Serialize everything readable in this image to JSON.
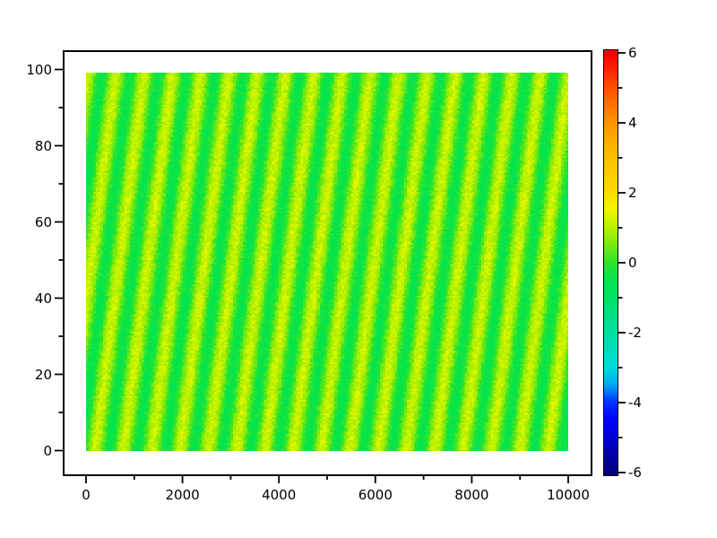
{
  "figure": {
    "background": "#ffffff",
    "frame_color": "#000000",
    "tick_label_color": "#000000"
  },
  "chart_data": {
    "type": "heatmap",
    "title": "",
    "xlabel": "",
    "ylabel": "",
    "x_range": [
      0,
      10000
    ],
    "y_range": [
      0,
      100
    ],
    "grid": false,
    "x_axis": {
      "major_ticks": [
        0,
        2000,
        4000,
        6000,
        8000,
        10000
      ],
      "minor_ticks": [
        1000,
        3000,
        5000,
        7000,
        9000
      ],
      "tick_labels": [
        "0",
        "2000",
        "4000",
        "6000",
        "8000",
        "10000"
      ]
    },
    "y_axis": {
      "major_ticks": [
        0,
        20,
        40,
        60,
        80,
        100
      ],
      "minor_ticks": [
        10,
        30,
        50,
        70,
        90
      ],
      "tick_labels": [
        "0",
        "20",
        "40",
        "60",
        "80",
        "100"
      ]
    },
    "colorbar": {
      "vmin": -6,
      "vmax": 6,
      "position": "right",
      "major_ticks": [
        6,
        4,
        2,
        0,
        -2,
        -4,
        -6
      ],
      "minor_ticks": [
        5,
        3,
        1,
        -1,
        -3,
        -5
      ],
      "tick_labels": [
        "6",
        "4",
        "2",
        "0",
        "-2",
        "-4",
        "-6"
      ],
      "colormap_stops": [
        {
          "v": -6.0,
          "color": "#000080"
        },
        {
          "v": -5.0,
          "color": "#0000d6"
        },
        {
          "v": -4.5,
          "color": "#0000fa"
        },
        {
          "v": -4.0,
          "color": "#0032ff"
        },
        {
          "v": -3.5,
          "color": "#00a8f0"
        },
        {
          "v": -3.0,
          "color": "#00dcdc"
        },
        {
          "v": -2.0,
          "color": "#00dda2"
        },
        {
          "v": -1.0,
          "color": "#00e164"
        },
        {
          "v": -0.5,
          "color": "#00e44e"
        },
        {
          "v": 0.0,
          "color": "#2ce42c"
        },
        {
          "v": 0.5,
          "color": "#76ea10"
        },
        {
          "v": 1.0,
          "color": "#b6f000"
        },
        {
          "v": 1.5,
          "color": "#eef800"
        },
        {
          "v": 2.0,
          "color": "#ffdc00"
        },
        {
          "v": 3.0,
          "color": "#ffc000"
        },
        {
          "v": 4.0,
          "color": "#ff9400"
        },
        {
          "v": 5.0,
          "color": "#ff5200"
        },
        {
          "v": 6.0,
          "color": "#f60000"
        }
      ]
    },
    "field": {
      "description": "Noisy scalar field of ~17 diagonal stripes, tilted slightly from vertical (tops shifted right). Values oscillate between about -0.5 (green background) and +1.2 (yellow stripes) on a colorbar scale of -6..6.",
      "stripe_period_x": 590,
      "stripe_slope_dx_per_dy": 10.3,
      "base_value": 0.35,
      "amplitude": 0.85,
      "noise_amplitude": 0.28,
      "phase": -0.2,
      "grid_nx": 200,
      "grid_ny": 200,
      "plotted_y_max": 99,
      "value_min_observed": -0.8,
      "value_max_observed": 1.5
    }
  }
}
